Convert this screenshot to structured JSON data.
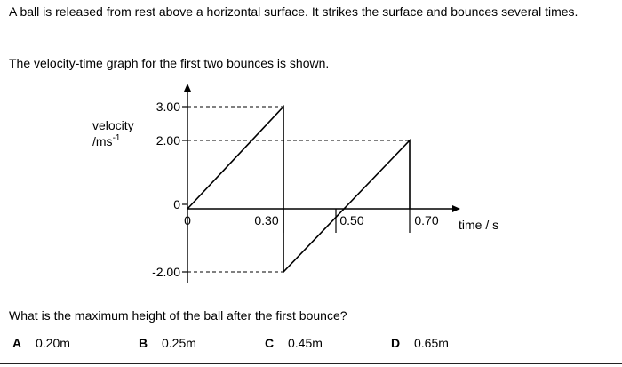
{
  "question": {
    "intro": "A ball is released from rest above a horizontal surface. It strikes the surface and bounces several times.",
    "graph_intro": "The velocity-time graph for the first two bounces is shown.",
    "prompt": "What is the maximum height of the ball after the first bounce?"
  },
  "options": [
    {
      "letter": "A",
      "text": "0.20m"
    },
    {
      "letter": "B",
      "text": "0.25m"
    },
    {
      "letter": "C",
      "text": "0.45m"
    },
    {
      "letter": "D",
      "text": "0.65m"
    }
  ],
  "chart_data": {
    "type": "line",
    "ylabel_line1": "velocity",
    "ylabel_line2": "/ms",
    "ylabel_sup": "-1",
    "xlabel": "time / s",
    "y_ticks": [
      "3.00",
      "2.00",
      "0",
      "-2.00"
    ],
    "x_ticks": [
      "0",
      "0.30",
      "0.50",
      "0.70"
    ],
    "series": [
      {
        "x": [
          0,
          0.3,
          0.3,
          0.7,
          0.7
        ],
        "y": [
          0,
          3.0,
          -2.0,
          2.0,
          0
        ]
      }
    ],
    "dashed_levels": [
      3.0,
      2.0,
      -2.0
    ],
    "ylim": [
      -2.0,
      3.0
    ],
    "xlim": [
      0,
      0.7
    ],
    "grid": false
  }
}
